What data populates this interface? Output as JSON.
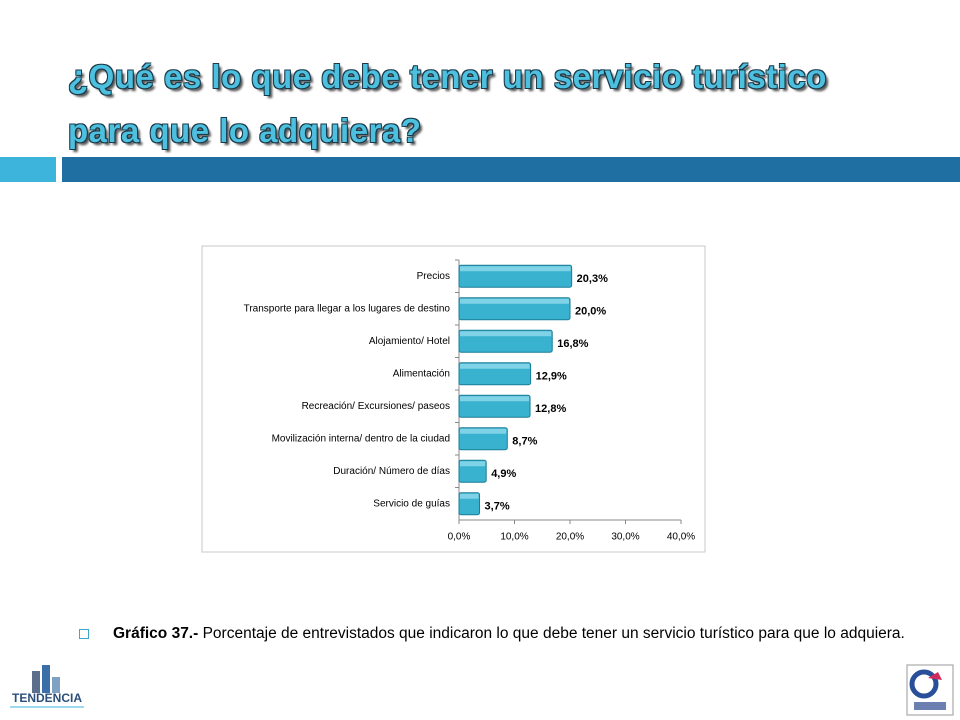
{
  "title_lines": [
    "¿Qué es lo que debe tener un servicio turístico",
    "para que lo adquiera?"
  ],
  "chart_data": {
    "type": "barh",
    "categories": [
      "Precios",
      "Transporte para llegar a los lugares de destino",
      "Alojamiento/ Hotel",
      "Alimentación",
      "Recreación/ Excursiones/  paseos",
      "Movilización interna/  dentro de la ciudad",
      "Duración/ Número de días",
      "Servicio de guías"
    ],
    "values": [
      20.3,
      20.0,
      16.8,
      12.9,
      12.8,
      8.7,
      4.9,
      3.7
    ],
    "value_labels": [
      "20,3%",
      "20,0%",
      "16,8%",
      "12,9%",
      "12,8%",
      "8,7%",
      "4,9%",
      "3,7%"
    ],
    "color": "#38b2cf",
    "xlim": [
      0,
      40
    ],
    "xticks": [
      {
        "value": 0,
        "label": "0,0%"
      },
      {
        "value": 10,
        "label": "10,0%"
      },
      {
        "value": 20,
        "label": "20,0%"
      },
      {
        "value": 30,
        "label": "30,0%"
      },
      {
        "value": 40,
        "label": "40,0%"
      }
    ]
  },
  "caption": {
    "label": "Gráfico 37.-",
    "text": "Porcentaje de entrevistados que indicaron lo que debe tener un servicio turístico para que lo adquiera."
  },
  "logo_text": "TENDENCIA"
}
